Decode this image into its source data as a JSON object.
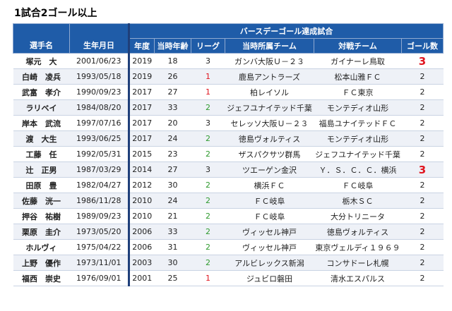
{
  "title": "1試合2ゴール以上",
  "table": {
    "group_header": "バースデーゴール達成試合",
    "headers": [
      "選手名",
      "生年月日",
      "年度",
      "当時年齢",
      "リーグ",
      "当時所属チーム",
      "対戦チーム",
      "ゴール数"
    ],
    "rows": [
      [
        "塚元　大",
        "2001/06/23",
        2019,
        18,
        3,
        "ガンバ大阪Ｕ－２３",
        "ガイナーレ鳥取",
        3
      ],
      [
        "白崎　凌兵",
        "1993/05/18",
        2019,
        26,
        1,
        "鹿島アントラーズ",
        "松本山雅ＦＣ",
        2
      ],
      [
        "武富　孝介",
        "1990/09/23",
        2017,
        27,
        1,
        "柏レイソル",
        "ＦＣ東京",
        2
      ],
      [
        "ラリベイ",
        "1984/08/20",
        2017,
        33,
        2,
        "ジェフユナイテッド千葉",
        "モンテディオ山形",
        2
      ],
      [
        "岸本　武流",
        "1997/07/16",
        2017,
        20,
        3,
        "セレッソ大阪Ｕ－２３",
        "福島ユナイテッドＦＣ",
        2
      ],
      [
        "渡　大生",
        "1993/06/25",
        2017,
        24,
        2,
        "徳島ヴォルティス",
        "モンテディオ山形",
        2
      ],
      [
        "工藤　任",
        "1992/05/31",
        2015,
        23,
        2,
        "ザスパクサツ群馬",
        "ジェフユナイテッド千葉",
        2
      ],
      [
        "辻　正男",
        "1987/03/29",
        2014,
        27,
        3,
        "ツエーゲン金沢",
        "Ｙ．Ｓ．Ｃ．Ｃ．横浜",
        3
      ],
      [
        "田原　豊",
        "1982/04/27",
        2012,
        30,
        2,
        "横浜ＦＣ",
        "ＦＣ岐阜",
        2
      ],
      [
        "佐藤　洸一",
        "1986/11/28",
        2010,
        24,
        2,
        "ＦＣ岐阜",
        "栃木ＳＣ",
        2
      ],
      [
        "押谷　祐樹",
        "1989/09/23",
        2010,
        21,
        2,
        "ＦＣ岐阜",
        "大分トリニータ",
        2
      ],
      [
        "栗原　圭介",
        "1973/05/20",
        2006,
        33,
        2,
        "ヴィッセル神戸",
        "徳島ヴォルティス",
        2
      ],
      [
        "ホルヴィ",
        "1975/04/22",
        2006,
        31,
        2,
        "ヴィッセル神戸",
        "東京ヴェルディ１９６９",
        2
      ],
      [
        "上野　優作",
        "1973/11/01",
        2003,
        30,
        2,
        "アルビレックス新潟",
        "コンサドーレ札幌",
        2
      ],
      [
        "福西　崇史",
        "1976/09/01",
        2001,
        25,
        1,
        "ジュビロ磐田",
        "清水エスパルス",
        2
      ]
    ]
  }
}
